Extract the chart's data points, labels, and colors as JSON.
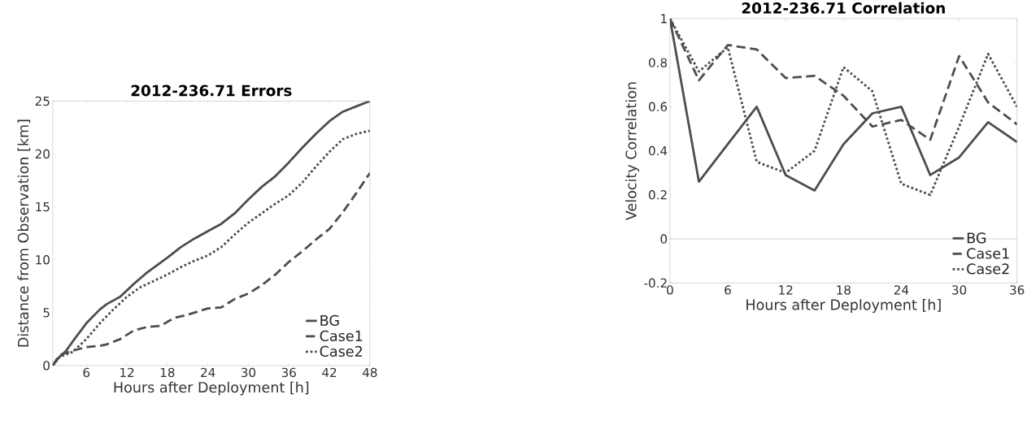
{
  "chart_data": [
    {
      "type": "line",
      "title": "2012-236.71 Errors",
      "xlabel": "Hours after Deployment [h]",
      "ylabel": "Distance from Observation [km]",
      "xlim": [
        1,
        48
      ],
      "ylim": [
        0,
        25
      ],
      "xticks": [
        6,
        12,
        18,
        24,
        30,
        36,
        42,
        48
      ],
      "yticks": [
        0,
        5,
        10,
        15,
        20,
        25
      ],
      "legend": "bottom right",
      "series": [
        {
          "name": "BG",
          "color": "#4d4d4d",
          "line_style": "solid",
          "x": [
            1,
            2,
            3,
            4,
            6,
            8,
            9,
            11,
            13,
            15,
            18,
            20,
            22,
            24,
            26,
            28,
            30,
            32,
            34,
            36,
            38,
            40,
            42,
            44,
            46,
            48
          ],
          "values": [
            0,
            0.8,
            1.4,
            2.3,
            4.0,
            5.3,
            5.8,
            6.5,
            7.7,
            8.8,
            10.2,
            11.2,
            12.0,
            12.7,
            13.4,
            14.4,
            15.7,
            16.9,
            17.9,
            19.2,
            20.6,
            21.9,
            23.1,
            24.0,
            24.5,
            25.0
          ]
        },
        {
          "name": "Case1",
          "color": "#4d4d4d",
          "line_style": "dashed",
          "x": [
            1,
            2,
            4,
            6,
            8,
            9,
            11,
            13,
            15,
            17,
            19,
            21,
            23,
            24,
            26,
            28,
            30,
            32,
            34,
            36,
            38,
            40,
            42,
            44,
            46,
            48
          ],
          "values": [
            0,
            1.0,
            1.4,
            1.75,
            1.85,
            2.0,
            2.5,
            3.3,
            3.65,
            3.75,
            4.5,
            4.8,
            5.2,
            5.4,
            5.5,
            6.3,
            6.8,
            7.6,
            8.6,
            9.8,
            10.8,
            11.9,
            12.9,
            14.5,
            16.3,
            18.2
          ]
        },
        {
          "name": "Case2",
          "color": "#4d4d4d",
          "line_style": "dotted",
          "x": [
            1,
            2,
            4,
            6,
            8,
            10,
            12,
            14,
            16,
            18,
            20,
            22,
            24,
            26,
            28,
            30,
            32,
            34,
            36,
            38,
            40,
            42,
            44,
            46,
            48
          ],
          "values": [
            0,
            0.8,
            1.3,
            2.5,
            4.0,
            5.3,
            6.5,
            7.4,
            8.0,
            8.6,
            9.3,
            9.9,
            10.4,
            11.2,
            12.4,
            13.5,
            14.4,
            15.3,
            16.1,
            17.3,
            18.8,
            20.2,
            21.4,
            21.9,
            22.2
          ]
        }
      ]
    },
    {
      "type": "line",
      "title": "2012-236.71 Correlation",
      "xlabel": "Hours after Deployment [h]",
      "ylabel": "Velocity Correlation",
      "xlim": [
        0,
        36
      ],
      "ylim": [
        -0.2,
        1
      ],
      "xticks": [
        0,
        6,
        12,
        18,
        24,
        30,
        36
      ],
      "yticks": [
        -0.2,
        0,
        0.2,
        0.4,
        0.6,
        0.8,
        1
      ],
      "legend": "bottom right",
      "x": [
        0,
        3,
        6,
        9,
        12,
        15,
        18,
        21,
        24,
        27,
        30,
        33,
        36
      ],
      "ref_lines": [
        {
          "axis": "y",
          "value": 0,
          "color": "#b0b0b0"
        }
      ],
      "series": [
        {
          "name": "BG",
          "color": "#4d4d4d",
          "line_style": "solid",
          "values": [
            1.0,
            0.26,
            0.43,
            0.6,
            0.29,
            0.22,
            0.43,
            0.57,
            0.6,
            0.29,
            0.37,
            0.53,
            0.44
          ]
        },
        {
          "name": "Case1",
          "color": "#4d4d4d",
          "line_style": "dashed",
          "values": [
            1.0,
            0.72,
            0.88,
            0.86,
            0.73,
            0.74,
            0.65,
            0.51,
            0.54,
            0.45,
            0.83,
            0.62,
            0.52
          ]
        },
        {
          "name": "Case2",
          "color": "#4d4d4d",
          "line_style": "dotted",
          "values": [
            1.0,
            0.76,
            0.87,
            0.35,
            0.3,
            0.4,
            0.78,
            0.67,
            0.25,
            0.2,
            0.51,
            0.84,
            0.6
          ]
        }
      ]
    }
  ]
}
